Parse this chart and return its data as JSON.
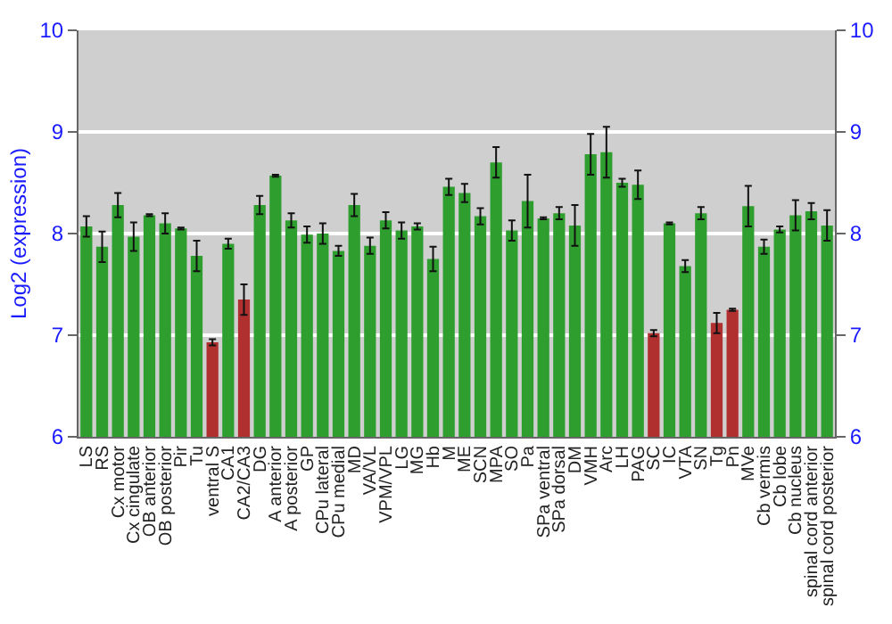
{
  "chart_data": {
    "type": "bar",
    "ylabel": "Log2 (expression)",
    "categories": [
      "LS",
      "RS",
      "Cx motor",
      "Cx cingulate",
      "OB anterior",
      "OB posterior",
      "Pir",
      "Tu",
      "ventral S",
      "CA1",
      "CA2/CA3",
      "DG",
      "A anterior",
      "A posterior",
      "GP",
      "CPu lateral",
      "CPu medial",
      "MD",
      "VA/VL",
      "VPM/VPL",
      "LG",
      "MG",
      "Hb",
      "M",
      "ME",
      "SCN",
      "MPA",
      "SO",
      "Pa",
      "SPa ventral",
      "SPa dorsal",
      "DM",
      "VMH",
      "Arc",
      "LH",
      "PAG",
      "SC",
      "IC",
      "VTA",
      "SN",
      "Tg",
      "Pn",
      "MVe",
      "Cb vermis",
      "Cb lobe",
      "Cb nucleus",
      "spinal cord anterior",
      "spinal cord posterior"
    ],
    "values": [
      8.07,
      7.87,
      8.28,
      7.97,
      8.18,
      8.1,
      8.05,
      7.78,
      6.93,
      7.9,
      7.35,
      8.28,
      8.57,
      8.13,
      7.99,
      8.0,
      7.83,
      8.28,
      7.88,
      8.13,
      8.03,
      8.07,
      7.75,
      8.46,
      8.4,
      8.17,
      8.7,
      8.03,
      8.32,
      8.15,
      8.2,
      8.08,
      8.78,
      8.8,
      8.5,
      8.48,
      7.02,
      8.1,
      7.68,
      8.2,
      7.12,
      7.25,
      8.27,
      7.87,
      8.04,
      8.18,
      8.22,
      8.08
    ],
    "errors": [
      0.1,
      0.15,
      0.12,
      0.14,
      0.01,
      0.1,
      0.01,
      0.15,
      0.03,
      0.05,
      0.15,
      0.09,
      0.01,
      0.07,
      0.08,
      0.1,
      0.05,
      0.11,
      0.08,
      0.08,
      0.08,
      0.03,
      0.12,
      0.08,
      0.09,
      0.08,
      0.15,
      0.1,
      0.26,
      0.01,
      0.06,
      0.2,
      0.2,
      0.25,
      0.04,
      0.14,
      0.03,
      0.01,
      0.06,
      0.06,
      0.1,
      0.01,
      0.2,
      0.07,
      0.03,
      0.15,
      0.08,
      0.15
    ],
    "colors": [
      "#2e9e2e",
      "#2e9e2e",
      "#2e9e2e",
      "#2e9e2e",
      "#2e9e2e",
      "#2e9e2e",
      "#2e9e2e",
      "#2e9e2e",
      "#b03030",
      "#2e9e2e",
      "#b03030",
      "#2e9e2e",
      "#2e9e2e",
      "#2e9e2e",
      "#2e9e2e",
      "#2e9e2e",
      "#2e9e2e",
      "#2e9e2e",
      "#2e9e2e",
      "#2e9e2e",
      "#2e9e2e",
      "#2e9e2e",
      "#2e9e2e",
      "#2e9e2e",
      "#2e9e2e",
      "#2e9e2e",
      "#2e9e2e",
      "#2e9e2e",
      "#2e9e2e",
      "#2e9e2e",
      "#2e9e2e",
      "#2e9e2e",
      "#2e9e2e",
      "#2e9e2e",
      "#2e9e2e",
      "#2e9e2e",
      "#b03030",
      "#2e9e2e",
      "#2e9e2e",
      "#2e9e2e",
      "#b03030",
      "#b03030",
      "#2e9e2e",
      "#2e9e2e",
      "#2e9e2e",
      "#2e9e2e",
      "#2e9e2e",
      "#2e9e2e"
    ],
    "ylim": [
      6,
      10
    ],
    "yticks": [
      6,
      7,
      8,
      9,
      10
    ],
    "y2lim": [
      6,
      10
    ],
    "y2ticks": [
      6,
      7,
      8,
      9,
      10
    ],
    "grid": "y"
  }
}
